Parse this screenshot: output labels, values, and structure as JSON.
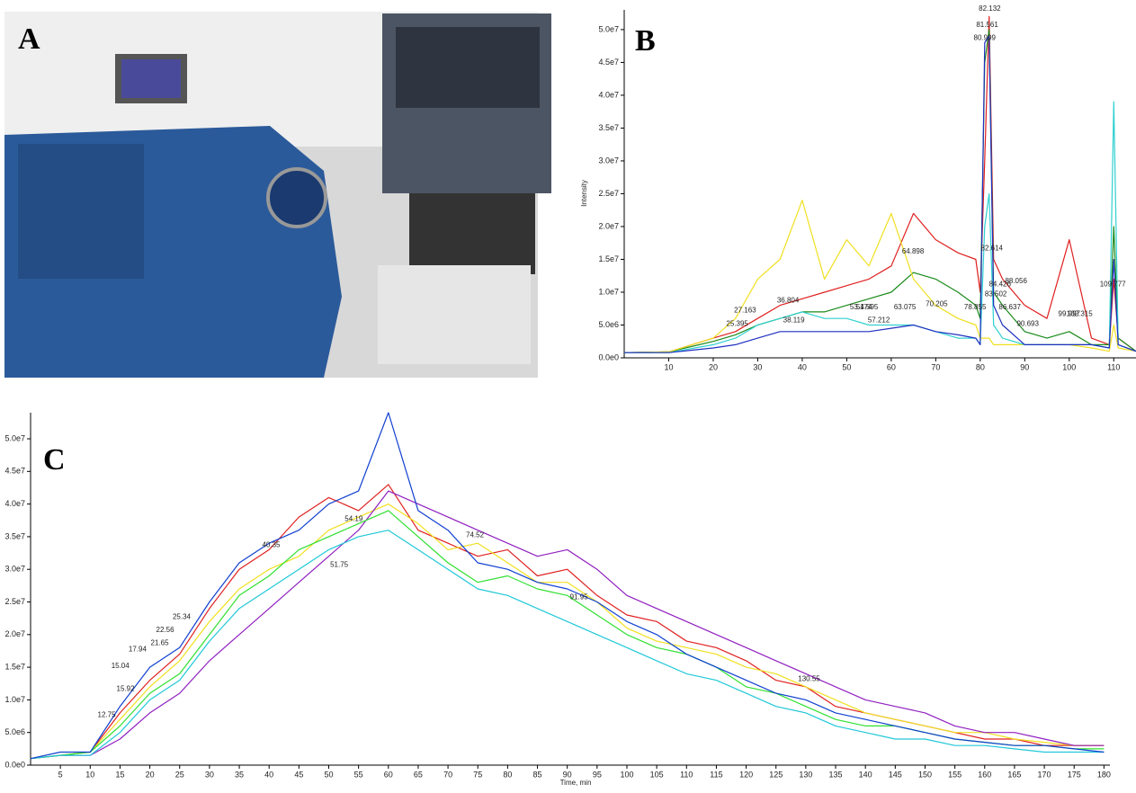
{
  "photo": {
    "label": "A"
  },
  "chart_data": [
    {
      "type": "line",
      "label": "B",
      "ylabel": "Intensity",
      "xlim": [
        0,
        115
      ],
      "ylim": [
        0,
        53000000
      ],
      "xticks": [
        10,
        20,
        30,
        40,
        50,
        60,
        70,
        80,
        90,
        100,
        110
      ],
      "yticks": [
        {
          "value": 0,
          "label": "0.0e0"
        },
        {
          "value": 5000000,
          "label": "5.0e6"
        },
        {
          "value": 10000000,
          "label": "1.0e7"
        },
        {
          "value": 15000000,
          "label": "1.5e7"
        },
        {
          "value": 20000000,
          "label": "2.0e7"
        },
        {
          "value": 25000000,
          "label": "2.5e7"
        },
        {
          "value": 30000000,
          "label": "3.0e7"
        },
        {
          "value": 35000000,
          "label": "3.5e7"
        },
        {
          "value": 40000000,
          "label": "4.0e7"
        },
        {
          "value": 45000000,
          "label": "4.5e7"
        },
        {
          "value": 50000000,
          "label": "5.0e7"
        }
      ],
      "x": [
        0,
        10,
        20,
        25,
        30,
        35,
        40,
        45,
        50,
        55,
        60,
        65,
        70,
        75,
        79,
        80,
        81,
        82,
        83,
        85,
        90,
        95,
        100,
        105,
        109,
        110,
        111,
        115
      ],
      "series": [
        {
          "color": "#e02020",
          "values": [
            800000,
            900000,
            3000000,
            4000000,
            6000000,
            8000000,
            9000000,
            10000000,
            11000000,
            12000000,
            14000000,
            22000000,
            18000000,
            16000000,
            15000000,
            10000000,
            30000000,
            52000000,
            15000000,
            12000000,
            8000000,
            6000000,
            18000000,
            3000000,
            2000000,
            12000000,
            3000000,
            1000000
          ]
        },
        {
          "color": "#1a8a1a",
          "values": [
            800000,
            900000,
            2500000,
            3500000,
            5000000,
            6000000,
            7000000,
            7000000,
            8000000,
            9000000,
            10000000,
            13000000,
            12000000,
            10000000,
            8000000,
            6000000,
            45000000,
            50000000,
            10000000,
            8000000,
            4000000,
            3000000,
            4000000,
            2000000,
            2000000,
            20000000,
            3000000,
            1000000
          ]
        },
        {
          "color": "#f0e020",
          "values": [
            800000,
            900000,
            3000000,
            6000000,
            12000000,
            15000000,
            24000000,
            12000000,
            18000000,
            14000000,
            22000000,
            12000000,
            8000000,
            6000000,
            5000000,
            3000000,
            3000000,
            3000000,
            2000000,
            2000000,
            2000000,
            2000000,
            2000000,
            1500000,
            1000000,
            5000000,
            1500000,
            1000000
          ]
        },
        {
          "color": "#30d0d0",
          "values": [
            800000,
            800000,
            2000000,
            3000000,
            5000000,
            6000000,
            7000000,
            6000000,
            6000000,
            5000000,
            5000000,
            5000000,
            4000000,
            3000000,
            3000000,
            2000000,
            20000000,
            25000000,
            5000000,
            3000000,
            2000000,
            2000000,
            2000000,
            2000000,
            1500000,
            39000000,
            2000000,
            1000000
          ]
        },
        {
          "color": "#2030c0",
          "values": [
            800000,
            800000,
            1500000,
            2000000,
            3000000,
            4000000,
            4000000,
            4000000,
            4000000,
            4000000,
            4500000,
            5000000,
            4000000,
            3500000,
            3000000,
            2000000,
            48000000,
            49000000,
            8000000,
            5000000,
            2000000,
            2000000,
            2000000,
            2000000,
            1500000,
            15000000,
            2000000,
            1000000
          ]
        }
      ],
      "annotations": [
        {
          "x": 82.132,
          "y": 52500000
        },
        {
          "x": 81.561,
          "y": 50000000
        },
        {
          "x": 80.999,
          "y": 48000000
        },
        {
          "x": 64.898,
          "y": 15500000
        },
        {
          "x": 82.614,
          "y": 16000000
        },
        {
          "x": 88.056,
          "y": 11000000
        },
        {
          "x": 84.426,
          "y": 10500000
        },
        {
          "x": 83.502,
          "y": 9000000
        },
        {
          "x": 86.637,
          "y": 7000000
        },
        {
          "x": 90.693,
          "y": 4500000
        },
        {
          "x": 99.997,
          "y": 6000000
        },
        {
          "x": 102.315,
          "y": 6000000
        },
        {
          "x": 109.777,
          "y": 10500000
        },
        {
          "x": 70.205,
          "y": 7500000
        },
        {
          "x": 78.855,
          "y": 7000000
        },
        {
          "x": 27.163,
          "y": 6500000
        },
        {
          "x": 25.395,
          "y": 4500000
        },
        {
          "x": 38.119,
          "y": 5000000
        },
        {
          "x": 36.804,
          "y": 8000000
        },
        {
          "x": 53.174,
          "y": 7000000
        },
        {
          "x": 54.595,
          "y": 7000000
        },
        {
          "x": 63.075,
          "y": 7000000
        },
        {
          "x": 57.212,
          "y": 5000000
        }
      ]
    },
    {
      "type": "line",
      "label": "C",
      "xlabel": "Time, min",
      "xlim": [
        0,
        181
      ],
      "ylim": [
        0,
        54000000
      ],
      "xticks": [
        5,
        10,
        15,
        20,
        25,
        30,
        35,
        40,
        45,
        50,
        55,
        60,
        65,
        70,
        75,
        80,
        85,
        90,
        95,
        100,
        105,
        110,
        115,
        120,
        125,
        130,
        135,
        140,
        145,
        150,
        155,
        160,
        165,
        170,
        175,
        180
      ],
      "yticks": [
        {
          "value": 0,
          "label": "0.0e0"
        },
        {
          "value": 5000000,
          "label": "5.0e6"
        },
        {
          "value": 10000000,
          "label": "1.0e7"
        },
        {
          "value": 15000000,
          "label": "1.5e7"
        },
        {
          "value": 20000000,
          "label": "2.0e7"
        },
        {
          "value": 25000000,
          "label": "2.5e7"
        },
        {
          "value": 30000000,
          "label": "3.0e7"
        },
        {
          "value": 35000000,
          "label": "3.5e7"
        },
        {
          "value": 40000000,
          "label": "4.0e7"
        },
        {
          "value": 45000000,
          "label": "4.5e7"
        },
        {
          "value": 50000000,
          "label": "5.0e7"
        }
      ],
      "x": [
        0,
        5,
        10,
        15,
        20,
        25,
        30,
        35,
        40,
        45,
        50,
        55,
        60,
        65,
        70,
        75,
        80,
        85,
        90,
        95,
        100,
        105,
        110,
        115,
        120,
        125,
        130,
        135,
        140,
        145,
        150,
        155,
        160,
        165,
        170,
        175,
        180
      ],
      "series": [
        {
          "color": "#e02020",
          "values": [
            1000000,
            1500000,
            2000000,
            8000000,
            13000000,
            17000000,
            24000000,
            30000000,
            33000000,
            38000000,
            41000000,
            39000000,
            43000000,
            36000000,
            34000000,
            32000000,
            33000000,
            29000000,
            30000000,
            26000000,
            23000000,
            22000000,
            19000000,
            18000000,
            16000000,
            13000000,
            12000000,
            9000000,
            8000000,
            7000000,
            6000000,
            5000000,
            4000000,
            4000000,
            3000000,
            3000000,
            3000000
          ]
        },
        {
          "color": "#f0e020",
          "values": [
            1000000,
            1500000,
            2000000,
            7000000,
            12000000,
            16000000,
            22000000,
            27000000,
            30000000,
            32000000,
            36000000,
            38000000,
            40000000,
            37000000,
            33000000,
            34000000,
            31000000,
            28000000,
            28000000,
            25000000,
            21000000,
            19000000,
            18000000,
            17000000,
            15000000,
            14000000,
            12000000,
            10000000,
            8000000,
            7000000,
            6000000,
            5000000,
            5000000,
            4000000,
            3500000,
            3000000,
            3000000
          ]
        },
        {
          "color": "#9020c0",
          "values": [
            1000000,
            1500000,
            1500000,
            4000000,
            8000000,
            11000000,
            16000000,
            20000000,
            24000000,
            28000000,
            32000000,
            36000000,
            42000000,
            40000000,
            38000000,
            36000000,
            34000000,
            32000000,
            33000000,
            30000000,
            26000000,
            24000000,
            22000000,
            20000000,
            18000000,
            16000000,
            14000000,
            12000000,
            10000000,
            9000000,
            8000000,
            6000000,
            5000000,
            5000000,
            4000000,
            3000000,
            3000000
          ]
        },
        {
          "color": "#30e030",
          "values": [
            1000000,
            1500000,
            2000000,
            6000000,
            11000000,
            14000000,
            20000000,
            26000000,
            29000000,
            33000000,
            35000000,
            37000000,
            39000000,
            35000000,
            31000000,
            28000000,
            29000000,
            27000000,
            26000000,
            23000000,
            20000000,
            18000000,
            17000000,
            15000000,
            12000000,
            11000000,
            9000000,
            7000000,
            6000000,
            6000000,
            5000000,
            4000000,
            3500000,
            3000000,
            3000000,
            2500000,
            2500000
          ]
        },
        {
          "color": "#20c8d8",
          "values": [
            1000000,
            1500000,
            1500000,
            5000000,
            10000000,
            13000000,
            19000000,
            24000000,
            27000000,
            30000000,
            33000000,
            35000000,
            36000000,
            33000000,
            30000000,
            27000000,
            26000000,
            24000000,
            22000000,
            20000000,
            18000000,
            16000000,
            14000000,
            13000000,
            11000000,
            9000000,
            8000000,
            6000000,
            5000000,
            4000000,
            4000000,
            3000000,
            3000000,
            2500000,
            2000000,
            2000000,
            2000000
          ]
        },
        {
          "color": "#1040d0",
          "values": [
            1000000,
            2000000,
            2000000,
            9000000,
            15000000,
            18000000,
            25000000,
            31000000,
            34000000,
            36000000,
            40000000,
            42000000,
            54000000,
            39000000,
            36000000,
            31000000,
            30000000,
            28000000,
            27000000,
            25000000,
            22000000,
            20000000,
            17000000,
            15000000,
            13000000,
            11000000,
            10000000,
            8000000,
            7000000,
            6000000,
            5000000,
            4000000,
            3500000,
            3000000,
            3000000,
            2500000,
            2000000
          ]
        }
      ],
      "annotations": [
        {
          "x": 12.75,
          "y": 7000000
        },
        {
          "x": 15.92,
          "y": 11000000
        },
        {
          "x": 15.04,
          "y": 14500000
        },
        {
          "x": 17.94,
          "y": 17000000
        },
        {
          "x": 21.65,
          "y": 18000000
        },
        {
          "x": 22.56,
          "y": 20000000
        },
        {
          "x": 25.34,
          "y": 22000000
        },
        {
          "x": 40.35,
          "y": 33000000
        },
        {
          "x": 51.75,
          "y": 30000000
        },
        {
          "x": 54.19,
          "y": 37000000
        },
        {
          "x": 74.52,
          "y": 34500000
        },
        {
          "x": 91.95,
          "y": 25000000
        },
        {
          "x": 130.55,
          "y": 12500000
        }
      ]
    }
  ]
}
